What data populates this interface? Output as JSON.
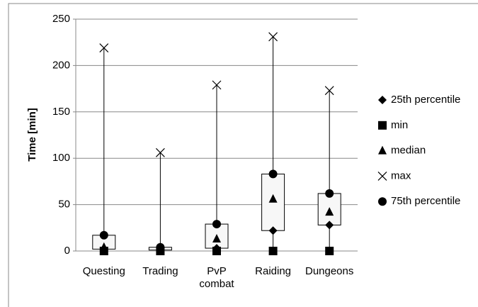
{
  "chart_data": {
    "type": "box",
    "y_label": "Time [min]",
    "categories": [
      "Questing",
      "Trading",
      "PvP combat",
      "Raiding",
      "Dungeons"
    ],
    "series": [
      {
        "name": "25th percentile",
        "marker": "diamond",
        "color": "#000000",
        "values": [
          2,
          1,
          3,
          22,
          28
        ]
      },
      {
        "name": "min",
        "marker": "square",
        "color": "#000000",
        "values": [
          0,
          0,
          0,
          0,
          0
        ]
      },
      {
        "name": "median",
        "marker": "triangle",
        "color": "#000000",
        "values": [
          4,
          2,
          13,
          56,
          42
        ]
      },
      {
        "name": "max",
        "marker": "x",
        "color": "#000000",
        "values": [
          219,
          106,
          179,
          231,
          173
        ]
      },
      {
        "name": "75th percentile",
        "marker": "circle",
        "color": "#000000",
        "values": [
          17,
          4,
          29,
          83,
          62
        ]
      }
    ],
    "ylim": [
      0,
      250
    ],
    "yticks": [
      0,
      50,
      100,
      150,
      200,
      250
    ],
    "grid": true,
    "legend": "right"
  }
}
